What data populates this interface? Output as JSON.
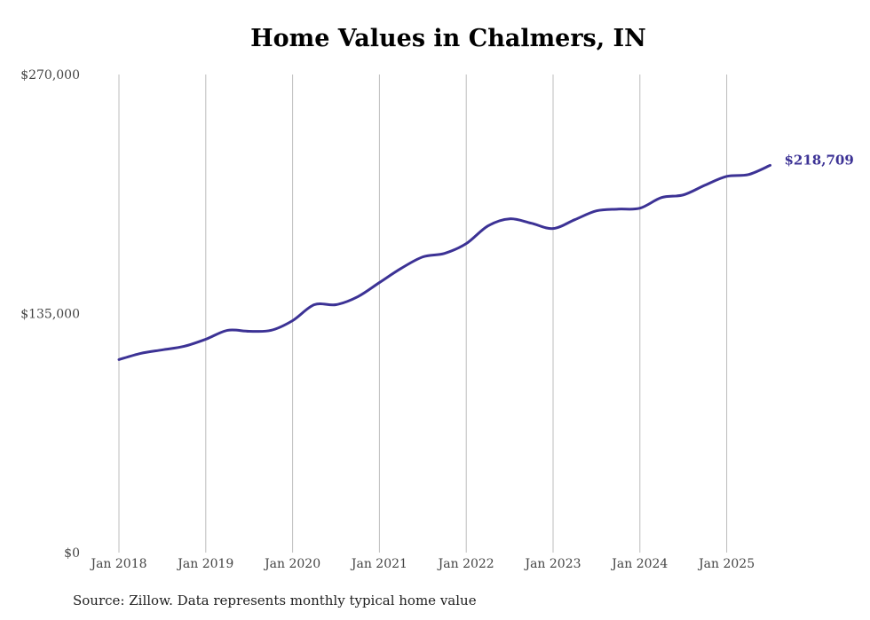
{
  "chart_data": {
    "type": "line",
    "title": "Home Values in Chalmers, IN",
    "source": "Source: Zillow. Data represents monthly typical home value",
    "xlabel": "",
    "ylabel": "",
    "ylim": [
      0,
      270000
    ],
    "y_ticks": [
      {
        "value": 0,
        "label": "$0"
      },
      {
        "value": 135000,
        "label": "$135,000"
      },
      {
        "value": 270000,
        "label": "$270,000"
      }
    ],
    "x_ticks": [
      {
        "value": "2018-01",
        "label": "Jan 2018"
      },
      {
        "value": "2019-01",
        "label": "Jan 2019"
      },
      {
        "value": "2020-01",
        "label": "Jan 2020"
      },
      {
        "value": "2021-01",
        "label": "Jan 2021"
      },
      {
        "value": "2022-01",
        "label": "Jan 2022"
      },
      {
        "value": "2023-01",
        "label": "Jan 2023"
      },
      {
        "value": "2024-01",
        "label": "Jan 2024"
      },
      {
        "value": "2025-01",
        "label": "Jan 2025"
      }
    ],
    "grid": "vertical",
    "line_color": "#3c3295",
    "end_label": "$218,709",
    "series": [
      {
        "points": [
          {
            "x": "2018-01",
            "y": 109000
          },
          {
            "x": "2018-04",
            "y": 112500
          },
          {
            "x": "2018-07",
            "y": 114500
          },
          {
            "x": "2018-10",
            "y": 116500
          },
          {
            "x": "2019-01",
            "y": 120500
          },
          {
            "x": "2019-04",
            "y": 125500
          },
          {
            "x": "2019-07",
            "y": 125000
          },
          {
            "x": "2019-10",
            "y": 125500
          },
          {
            "x": "2020-01",
            "y": 131000
          },
          {
            "x": "2020-04",
            "y": 140000
          },
          {
            "x": "2020-07",
            "y": 140000
          },
          {
            "x": "2020-10",
            "y": 144500
          },
          {
            "x": "2021-01",
            "y": 152500
          },
          {
            "x": "2021-04",
            "y": 160500
          },
          {
            "x": "2021-07",
            "y": 167000
          },
          {
            "x": "2021-10",
            "y": 169000
          },
          {
            "x": "2022-01",
            "y": 174500
          },
          {
            "x": "2022-04",
            "y": 184500
          },
          {
            "x": "2022-07",
            "y": 188500
          },
          {
            "x": "2022-10",
            "y": 186000
          },
          {
            "x": "2023-01",
            "y": 183000
          },
          {
            "x": "2023-04",
            "y": 188000
          },
          {
            "x": "2023-07",
            "y": 193000
          },
          {
            "x": "2023-10",
            "y": 194000
          },
          {
            "x": "2024-01",
            "y": 194500
          },
          {
            "x": "2024-04",
            "y": 200500
          },
          {
            "x": "2024-07",
            "y": 202000
          },
          {
            "x": "2024-10",
            "y": 207500
          },
          {
            "x": "2025-01",
            "y": 212500
          },
          {
            "x": "2025-04",
            "y": 213500
          },
          {
            "x": "2025-07",
            "y": 218709
          }
        ]
      }
    ]
  }
}
